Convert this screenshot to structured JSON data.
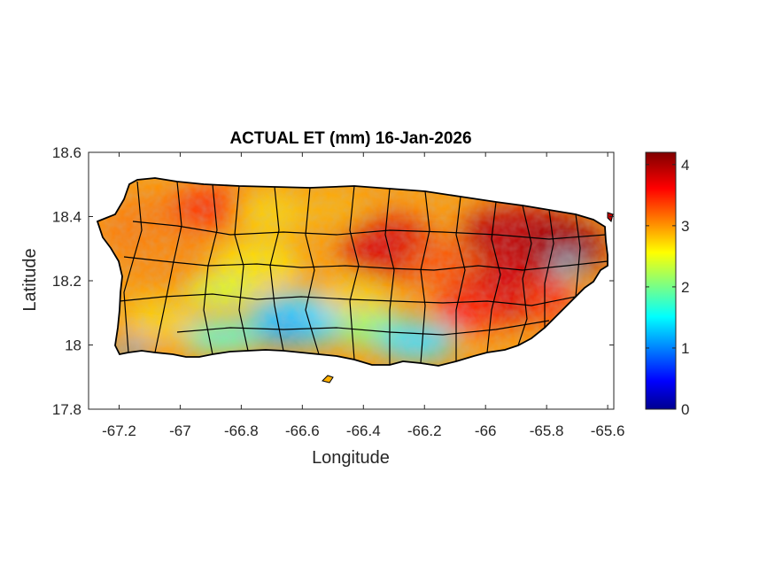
{
  "title": "ACTUAL ET (mm) 16-Jan-2026",
  "xlabel": "Longitude",
  "ylabel": "Latitude",
  "x_ticks": [
    "-67.2",
    "-67",
    "-66.8",
    "-66.6",
    "-66.4",
    "-66.2",
    "-66",
    "-65.8",
    "-65.6"
  ],
  "y_ticks": [
    "18.6",
    "18.4",
    "18.2",
    "18",
    "17.8"
  ],
  "colorbar_ticks": [
    "4",
    "3",
    "2",
    "1",
    "0"
  ],
  "chart_data": {
    "type": "heatmap",
    "title": "ACTUAL ET (mm) 16-Jan-2026",
    "xlabel": "Longitude",
    "ylabel": "Latitude",
    "xlim": [
      -67.3,
      -65.58
    ],
    "ylim": [
      17.8,
      18.6
    ],
    "x_tick_values": [
      -67.2,
      -67,
      -66.8,
      -66.6,
      -66.4,
      -66.2,
      -66,
      -65.8,
      -65.6
    ],
    "y_tick_values": [
      17.8,
      18,
      18.2,
      18.4,
      18.6
    ],
    "colorbar": {
      "min": 0,
      "max": 4.2,
      "ticks": [
        0,
        1,
        2,
        3,
        4
      ],
      "colormap": "jet"
    },
    "grid": false,
    "regions": [
      {
        "name": "northwest",
        "approx_value": 3.0
      },
      {
        "name": "north-central",
        "approx_value": 3.0
      },
      {
        "name": "central mountains",
        "approx_value": 3.5
      },
      {
        "name": "east",
        "approx_value": 3.8
      },
      {
        "name": "southwest",
        "approx_value": 1.8
      },
      {
        "name": "south-central",
        "approx_value": 1.7
      },
      {
        "name": "south-east",
        "approx_value": 3.2
      }
    ]
  }
}
